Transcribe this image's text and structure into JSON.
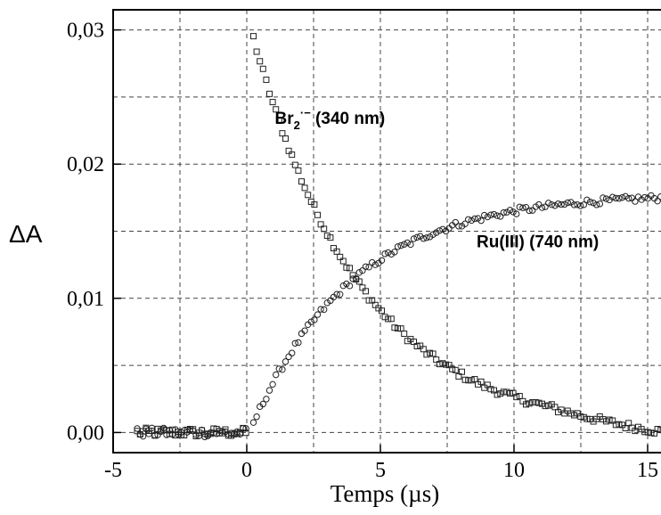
{
  "chart_data": {
    "type": "scatter",
    "xlabel": "Temps (µs)",
    "ylabel": "ΔA",
    "xlim": [
      -5,
      16
    ],
    "ylim": [
      -0.0015,
      0.0315
    ],
    "xticks": [
      -5,
      0,
      5,
      10,
      15
    ],
    "xtick_labels": [
      "-5",
      "0",
      "5",
      "10",
      "15"
    ],
    "yticks": [
      0,
      0.01,
      0.02,
      0.03
    ],
    "ytick_labels": [
      "0,00",
      "0,01",
      "0,02",
      "0,03"
    ],
    "grid": true,
    "annotations": [
      {
        "text": "Br",
        "sub": "2",
        "sup": "·−",
        "rest": " (340 nm)",
        "x": 1.05,
        "y": 0.023
      },
      {
        "text": "Ru(III) (740 nm)",
        "x": 8.6,
        "y": 0.0138
      }
    ],
    "series": [
      {
        "marker": "square",
        "model": {
          "kind": "decay",
          "t0": 0.1,
          "amplitude": 0.0305,
          "tau": 4.05,
          "tail_t": 11.4
        },
        "x": [
          -4,
          -3.5,
          -3,
          -2.5,
          -2,
          -1.5,
          -1,
          -0.5,
          0,
          0.3,
          0.6,
          1,
          1.5,
          2,
          2.5,
          3,
          3.5,
          4,
          4.5,
          5,
          6,
          7,
          8,
          9,
          10,
          11,
          12,
          13,
          14,
          15,
          16
        ],
        "y": [
          0.0,
          0.0,
          0.0001,
          0.0,
          0.0,
          0.0001,
          0.0,
          0.0001,
          0.0,
          0.0298,
          0.0275,
          0.0248,
          0.0218,
          0.0192,
          0.0168,
          0.0146,
          0.0127,
          0.0109,
          0.0094,
          0.008,
          0.0058,
          0.0041,
          0.0029,
          0.002,
          0.0013,
          0.0008,
          0.0004,
          0.0001,
          -0.0003,
          -0.0007,
          -0.0009
        ]
      },
      {
        "marker": "circle",
        "model": {
          "kind": "rise",
          "t0": 0.1,
          "amplitude": 0.0178,
          "tau": 3.8
        },
        "x": [
          -4,
          -3.5,
          -3,
          -2.5,
          -2,
          -1.5,
          -1,
          -0.5,
          0,
          0.5,
          1,
          1.5,
          2,
          2.5,
          3,
          3.5,
          4,
          4.5,
          5,
          6,
          7,
          8,
          9,
          10,
          11,
          12,
          13,
          14,
          15,
          16
        ],
        "y": [
          0.0,
          0.0001,
          0.0,
          0.0001,
          0.0,
          0.0,
          0.0001,
          0.0,
          0.0,
          0.0022,
          0.0043,
          0.0059,
          0.0072,
          0.0084,
          0.0095,
          0.0104,
          0.0112,
          0.0119,
          0.0125,
          0.0138,
          0.0148,
          0.0157,
          0.0163,
          0.0167,
          0.0171,
          0.0173,
          0.0175,
          0.0176,
          0.0177,
          0.0177
        ]
      }
    ]
  }
}
